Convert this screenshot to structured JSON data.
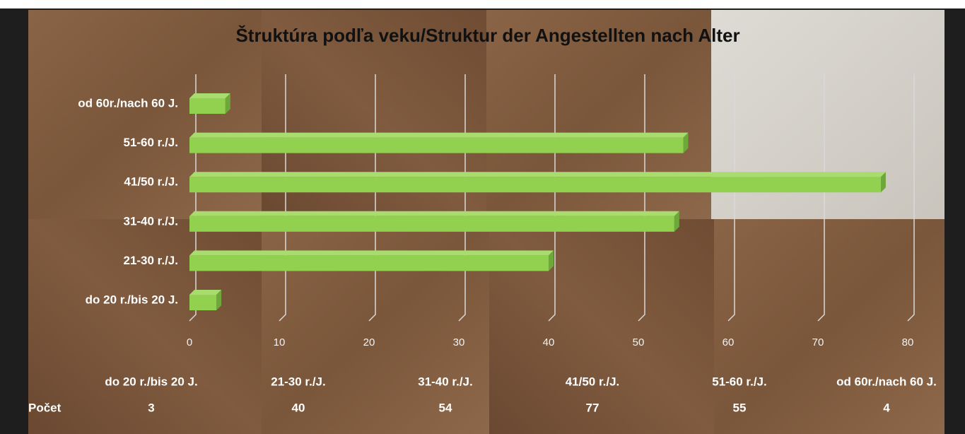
{
  "chart_data": {
    "type": "bar",
    "orientation": "horizontal",
    "title": "Štruktúra podľa veku/Struktur der Angestellten nach Alter",
    "categories": [
      "do 20 r./bis 20 J.",
      "21-30 r./J.",
      "31-40 r./J.",
      "41/50 r./J.",
      "51-60 r./J.",
      "od 60r./nach 60 J."
    ],
    "series": [
      {
        "name": "Počet",
        "color": "#92d050",
        "values": [
          3,
          40,
          54,
          77,
          55,
          4
        ]
      }
    ],
    "xlim": [
      0,
      80
    ],
    "xticks": [
      0,
      10,
      20,
      30,
      40,
      50,
      60,
      70,
      80
    ],
    "grid": true,
    "data_table": true
  }
}
